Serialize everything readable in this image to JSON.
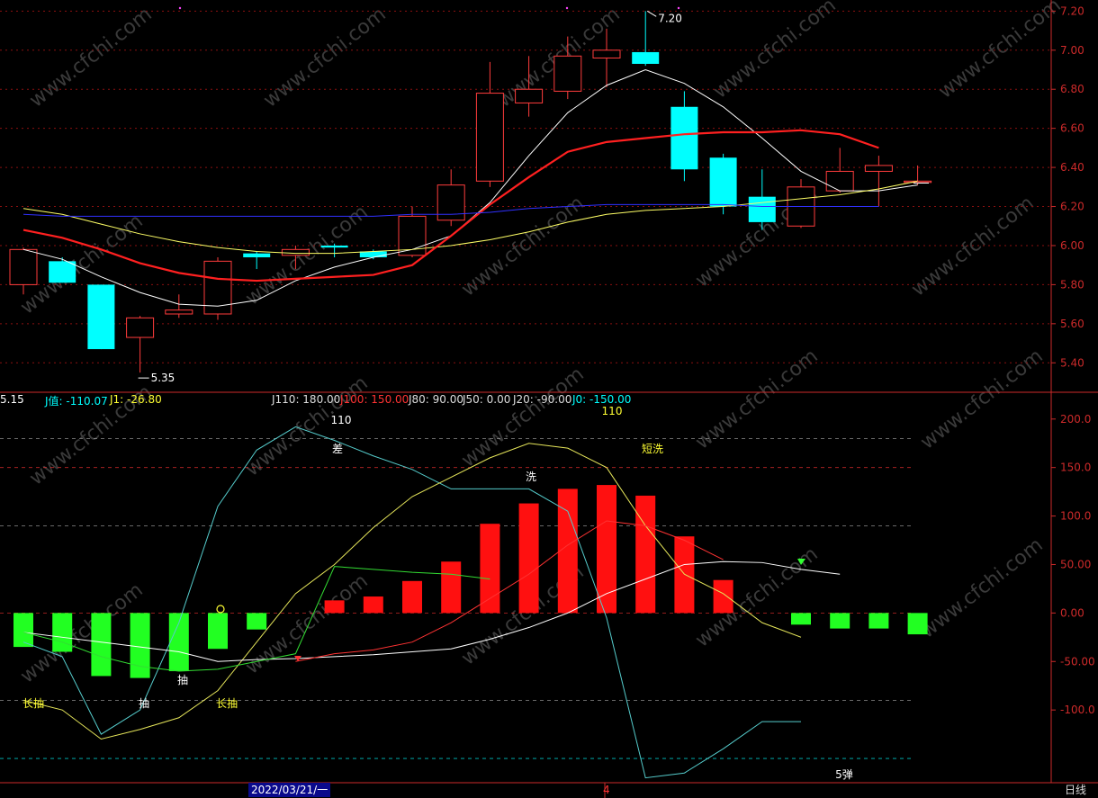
{
  "colors": {
    "up": "#ff3c3c",
    "down": "#00ffff",
    "grid": "#8a1010",
    "axis": "#cc2a2a",
    "ma5": "#ffffff",
    "ma10": "#ffff66",
    "ma20": "#ff2020",
    "ma60": "#3030ff"
  },
  "price_axis": {
    "ticks": [
      "7.20",
      "7.00",
      "6.80",
      "6.60",
      "6.40",
      "6.20",
      "6.00",
      "5.80",
      "5.60",
      "5.40"
    ]
  },
  "indicator_axis": {
    "ticks": [
      "200.0",
      "150.0",
      "100.0",
      "50.00",
      "0.00",
      "-50.00",
      "-100.0"
    ]
  },
  "annotations": {
    "high": "7.20",
    "low": "5.35"
  },
  "chart_data": [
    {
      "type": "candlestick",
      "y_range": [
        5.3,
        7.22
      ],
      "candles": [
        {
          "o": 5.8,
          "h": 5.99,
          "l": 5.75,
          "c": 5.98
        },
        {
          "o": 5.92,
          "h": 5.94,
          "l": 5.81,
          "c": 5.81
        },
        {
          "o": 5.8,
          "h": 5.8,
          "l": 5.47,
          "c": 5.47
        },
        {
          "o": 5.53,
          "h": 5.64,
          "l": 5.35,
          "c": 5.63
        },
        {
          "o": 5.65,
          "h": 5.75,
          "l": 5.63,
          "c": 5.67
        },
        {
          "o": 5.65,
          "h": 5.94,
          "l": 5.62,
          "c": 5.92
        },
        {
          "o": 5.96,
          "h": 5.97,
          "l": 5.88,
          "c": 5.94
        },
        {
          "o": 5.95,
          "h": 6.0,
          "l": 5.88,
          "c": 5.98
        },
        {
          "o": 6.0,
          "h": 6.01,
          "l": 5.94,
          "c": 5.99
        },
        {
          "o": 5.97,
          "h": 5.98,
          "l": 5.93,
          "c": 5.94
        },
        {
          "o": 5.95,
          "h": 6.2,
          "l": 5.94,
          "c": 6.15
        },
        {
          "o": 6.13,
          "h": 6.39,
          "l": 6.1,
          "c": 6.31
        },
        {
          "o": 6.33,
          "h": 6.94,
          "l": 6.3,
          "c": 6.78
        },
        {
          "o": 6.73,
          "h": 6.97,
          "l": 6.66,
          "c": 6.8
        },
        {
          "o": 6.79,
          "h": 7.07,
          "l": 6.75,
          "c": 6.97
        },
        {
          "o": 6.96,
          "h": 7.11,
          "l": 6.81,
          "c": 7.0
        },
        {
          "o": 6.99,
          "h": 7.2,
          "l": 6.92,
          "c": 6.93
        },
        {
          "o": 6.71,
          "h": 6.79,
          "l": 6.33,
          "c": 6.39
        },
        {
          "o": 6.45,
          "h": 6.47,
          "l": 6.16,
          "c": 6.2
        },
        {
          "o": 6.25,
          "h": 6.39,
          "l": 6.08,
          "c": 6.12
        },
        {
          "o": 6.1,
          "h": 6.34,
          "l": 6.09,
          "c": 6.3
        },
        {
          "o": 6.28,
          "h": 6.5,
          "l": 6.27,
          "c": 6.38
        },
        {
          "o": 6.38,
          "h": 6.46,
          "l": 6.2,
          "c": 6.41
        },
        {
          "o": 6.33,
          "h": 6.41,
          "l": 6.31,
          "c": 6.33
        }
      ],
      "series": [
        {
          "key": "ma5",
          "values": [
            5.98,
            5.93,
            5.84,
            5.76,
            5.7,
            5.69,
            5.72,
            5.82,
            5.89,
            5.94,
            5.98,
            6.05,
            6.22,
            6.46,
            6.68,
            6.82,
            6.9,
            6.83,
            6.71,
            6.55,
            6.38,
            6.28,
            6.28,
            6.31
          ]
        },
        {
          "key": "ma10",
          "values": [
            6.19,
            6.16,
            6.11,
            6.06,
            6.02,
            5.99,
            5.97,
            5.96,
            5.96,
            5.97,
            5.98,
            6.0,
            6.03,
            6.07,
            6.12,
            6.16,
            6.18,
            6.19,
            6.2,
            6.22,
            6.24,
            6.26,
            6.29,
            6.33
          ]
        },
        {
          "key": "ma20",
          "values": [
            6.08,
            6.04,
            5.98,
            5.91,
            5.86,
            5.83,
            5.82,
            5.83,
            5.84,
            5.85,
            5.9,
            6.05,
            6.21,
            6.35,
            6.48,
            6.53,
            6.55,
            6.57,
            6.58,
            6.58,
            6.59,
            6.57,
            6.5
          ]
        },
        {
          "key": "ma60",
          "values": [
            6.16,
            6.15,
            6.15,
            6.15,
            6.15,
            6.15,
            6.15,
            6.15,
            6.15,
            6.15,
            6.16,
            6.16,
            6.17,
            6.19,
            6.2,
            6.21,
            6.21,
            6.21,
            6.21,
            6.2,
            6.2,
            6.2,
            6.2
          ]
        }
      ]
    },
    {
      "type": "indicator",
      "y_range": [
        -175,
        210
      ],
      "legend": [
        {
          "label": "5.15",
          "color": "#ffffff"
        },
        {
          "label": "J值: -110.07",
          "color": "#00ffff"
        },
        {
          "label": "J1: -26.80",
          "color": "#ffff33"
        },
        {
          "label": "J110: 180.00",
          "color": "#dddddd"
        },
        {
          "label": "J100: 150.00",
          "color": "#ff3333"
        },
        {
          "label": "J80: 90.00",
          "color": "#dddddd"
        },
        {
          "label": "J50: 0.00",
          "color": "#dddddd"
        },
        {
          "label": "J20: -90.00",
          "color": "#dddddd"
        },
        {
          "label": "J0: -150.00",
          "color": "#00ffff"
        }
      ],
      "levels": [
        180,
        150,
        90,
        0,
        -90,
        -150
      ],
      "bars": [
        -35,
        -40,
        -65,
        -67,
        -60,
        -37,
        -17,
        0,
        13,
        17,
        33,
        53,
        92,
        113,
        128,
        132,
        121,
        79,
        34,
        0,
        -12,
        -16,
        -16,
        -22
      ],
      "j_line": [
        -30,
        -45,
        -125,
        -100,
        -10,
        110,
        168,
        192,
        178,
        162,
        148,
        128,
        128,
        128,
        105,
        -5,
        -170,
        -165,
        -140,
        -112,
        -112
      ],
      "j1_line": [
        -90,
        -100,
        -130,
        -120,
        -108,
        -80,
        -30,
        20,
        50,
        88,
        120,
        140,
        160,
        175,
        170,
        150,
        90,
        40,
        20,
        -10,
        -25
      ],
      "white_line": [
        -20,
        -25,
        -30,
        -35,
        -40,
        -50,
        -48,
        -47,
        -45,
        -43,
        -40,
        -37,
        -27,
        -15,
        0,
        20,
        35,
        50,
        53,
        52,
        45,
        40
      ],
      "red_line": [
        -50,
        -42,
        -38,
        -30,
        -10,
        15,
        40,
        70,
        95,
        90,
        75,
        55
      ],
      "green_line": [
        -20,
        -30,
        -45,
        -55,
        -60,
        -58,
        -50,
        -42,
        48,
        45,
        42,
        40,
        35
      ],
      "labels": [
        "110",
        "差",
        "洗",
        "110",
        "短洗",
        "长抽",
        "抽",
        "抽",
        "长抽",
        "5弹"
      ]
    }
  ],
  "footer": {
    "date": "2022/03/21/一",
    "cursor": "4",
    "period": "日线"
  },
  "watermark": "www.cfchi.com"
}
